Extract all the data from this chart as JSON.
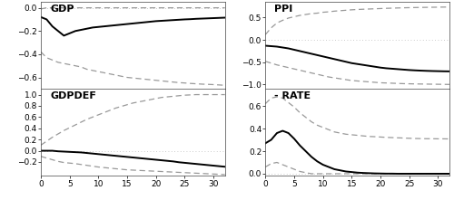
{
  "quarters": [
    0,
    1,
    2,
    3,
    4,
    5,
    6,
    7,
    8,
    9,
    10,
    11,
    12,
    13,
    14,
    15,
    16,
    17,
    18,
    19,
    20,
    21,
    22,
    23,
    24,
    25,
    26,
    27,
    28,
    29,
    30,
    31,
    32
  ],
  "GDP": {
    "point": [
      -0.08,
      -0.1,
      -0.16,
      -0.2,
      -0.24,
      -0.22,
      -0.2,
      -0.19,
      -0.18,
      -0.17,
      -0.165,
      -0.16,
      -0.155,
      -0.15,
      -0.145,
      -0.14,
      -0.135,
      -0.13,
      -0.125,
      -0.12,
      -0.115,
      -0.112,
      -0.109,
      -0.106,
      -0.103,
      -0.1,
      -0.098,
      -0.095,
      -0.093,
      -0.091,
      -0.089,
      -0.087,
      -0.085
    ],
    "upper": [
      -0.01,
      0.0,
      0.0,
      0.0,
      0.0,
      0.0,
      0.0,
      0.0,
      0.0,
      0.0,
      0.0,
      0.0,
      0.0,
      0.0,
      0.0,
      0.0,
      0.0,
      0.0,
      0.0,
      0.0,
      0.0,
      0.0,
      0.0,
      0.0,
      0.0,
      0.0,
      0.0,
      0.0,
      0.0,
      0.0,
      0.0,
      0.0,
      0.0
    ],
    "lower": [
      -0.38,
      -0.43,
      -0.45,
      -0.47,
      -0.48,
      -0.49,
      -0.5,
      -0.51,
      -0.53,
      -0.54,
      -0.55,
      -0.56,
      -0.57,
      -0.58,
      -0.59,
      -0.6,
      -0.605,
      -0.61,
      -0.615,
      -0.62,
      -0.625,
      -0.63,
      -0.635,
      -0.64,
      -0.645,
      -0.648,
      -0.652,
      -0.655,
      -0.658,
      -0.66,
      -0.662,
      -0.665,
      -0.668
    ],
    "ylim": [
      -0.7,
      0.05
    ],
    "yticks": [
      0.0,
      -0.2,
      -0.4,
      -0.6
    ],
    "label": "GDP"
  },
  "GDPDEF": {
    "point": [
      0.0,
      0.0,
      0.0,
      -0.01,
      -0.015,
      -0.02,
      -0.025,
      -0.03,
      -0.04,
      -0.05,
      -0.06,
      -0.07,
      -0.08,
      -0.09,
      -0.1,
      -0.11,
      -0.12,
      -0.13,
      -0.14,
      -0.15,
      -0.16,
      -0.17,
      -0.18,
      -0.19,
      -0.205,
      -0.215,
      -0.225,
      -0.235,
      -0.245,
      -0.255,
      -0.265,
      -0.275,
      -0.285
    ],
    "upper": [
      0.1,
      0.17,
      0.24,
      0.3,
      0.36,
      0.41,
      0.46,
      0.51,
      0.56,
      0.6,
      0.64,
      0.68,
      0.72,
      0.76,
      0.79,
      0.82,
      0.85,
      0.87,
      0.89,
      0.91,
      0.93,
      0.95,
      0.96,
      0.97,
      0.98,
      0.99,
      0.995,
      1.0,
      1.0,
      1.0,
      1.0,
      1.0,
      1.0
    ],
    "lower": [
      -0.1,
      -0.13,
      -0.16,
      -0.19,
      -0.21,
      -0.22,
      -0.23,
      -0.245,
      -0.26,
      -0.275,
      -0.29,
      -0.3,
      -0.31,
      -0.32,
      -0.33,
      -0.34,
      -0.345,
      -0.35,
      -0.355,
      -0.36,
      -0.365,
      -0.37,
      -0.375,
      -0.38,
      -0.385,
      -0.39,
      -0.395,
      -0.4,
      -0.405,
      -0.41,
      -0.415,
      -0.42,
      -0.425
    ],
    "ylim": [
      -0.45,
      1.1
    ],
    "yticks": [
      1.0,
      0.8,
      0.6,
      0.4,
      0.2,
      0.0,
      -0.2
    ],
    "label": "GDPDEF"
  },
  "PPI": {
    "point": [
      -0.13,
      -0.14,
      -0.15,
      -0.17,
      -0.19,
      -0.22,
      -0.25,
      -0.28,
      -0.31,
      -0.34,
      -0.37,
      -0.4,
      -0.43,
      -0.46,
      -0.49,
      -0.52,
      -0.54,
      -0.56,
      -0.58,
      -0.6,
      -0.62,
      -0.635,
      -0.645,
      -0.655,
      -0.665,
      -0.675,
      -0.682,
      -0.688,
      -0.693,
      -0.697,
      -0.7,
      -0.703,
      -0.705
    ],
    "upper": [
      0.12,
      0.27,
      0.38,
      0.44,
      0.49,
      0.52,
      0.55,
      0.57,
      0.59,
      0.6,
      0.62,
      0.63,
      0.645,
      0.655,
      0.665,
      0.675,
      0.682,
      0.688,
      0.693,
      0.698,
      0.703,
      0.708,
      0.712,
      0.716,
      0.72,
      0.723,
      0.726,
      0.728,
      0.73,
      0.732,
      0.734,
      0.736,
      0.738
    ],
    "lower": [
      -0.48,
      -0.52,
      -0.56,
      -0.59,
      -0.62,
      -0.65,
      -0.68,
      -0.71,
      -0.74,
      -0.77,
      -0.8,
      -0.83,
      -0.85,
      -0.87,
      -0.89,
      -0.91,
      -0.92,
      -0.93,
      -0.94,
      -0.95,
      -0.96,
      -0.965,
      -0.97,
      -0.975,
      -0.98,
      -0.983,
      -0.986,
      -0.988,
      -0.99,
      -0.992,
      -0.994,
      -0.996,
      -0.998
    ],
    "ylim": [
      -1.1,
      0.85
    ],
    "yticks": [
      0.5,
      0.0,
      -0.5,
      -1.0
    ],
    "label": "PPI"
  },
  "RATE": {
    "point": [
      0.27,
      0.3,
      0.36,
      0.38,
      0.36,
      0.31,
      0.25,
      0.2,
      0.15,
      0.11,
      0.08,
      0.06,
      0.04,
      0.03,
      0.02,
      0.015,
      0.01,
      0.007,
      0.005,
      0.003,
      0.002,
      0.001,
      0.001,
      0.0,
      0.0,
      0.0,
      0.0,
      0.0,
      0.0,
      0.0,
      0.0,
      0.0,
      0.0
    ],
    "upper": [
      0.62,
      0.67,
      0.68,
      0.67,
      0.63,
      0.59,
      0.54,
      0.5,
      0.46,
      0.43,
      0.41,
      0.39,
      0.37,
      0.36,
      0.35,
      0.345,
      0.34,
      0.335,
      0.33,
      0.328,
      0.325,
      0.322,
      0.32,
      0.318,
      0.316,
      0.314,
      0.312,
      0.311,
      0.31,
      0.31,
      0.309,
      0.309,
      0.308
    ],
    "lower": [
      0.06,
      0.09,
      0.1,
      0.08,
      0.06,
      0.04,
      0.02,
      0.01,
      0.0,
      0.0,
      0.0,
      0.0,
      0.0,
      0.0,
      0.0,
      0.0,
      0.0,
      0.0,
      0.0,
      0.0,
      0.0,
      0.0,
      0.0,
      0.0,
      0.0,
      0.0,
      0.0,
      0.0,
      0.0,
      0.0,
      0.0,
      0.0,
      0.0
    ],
    "ylim": [
      -0.02,
      0.75
    ],
    "yticks": [
      0.6,
      0.4,
      0.2,
      0.0
    ],
    "label": "- RATE"
  },
  "line_color": "#000000",
  "dash_color": "#999999",
  "dot_color": "#bbbbbb",
  "bg_color": "#ffffff",
  "xticks": [
    0,
    5,
    10,
    15,
    20,
    25,
    30
  ],
  "title_fontsize": 8,
  "tick_fontsize": 6.5
}
